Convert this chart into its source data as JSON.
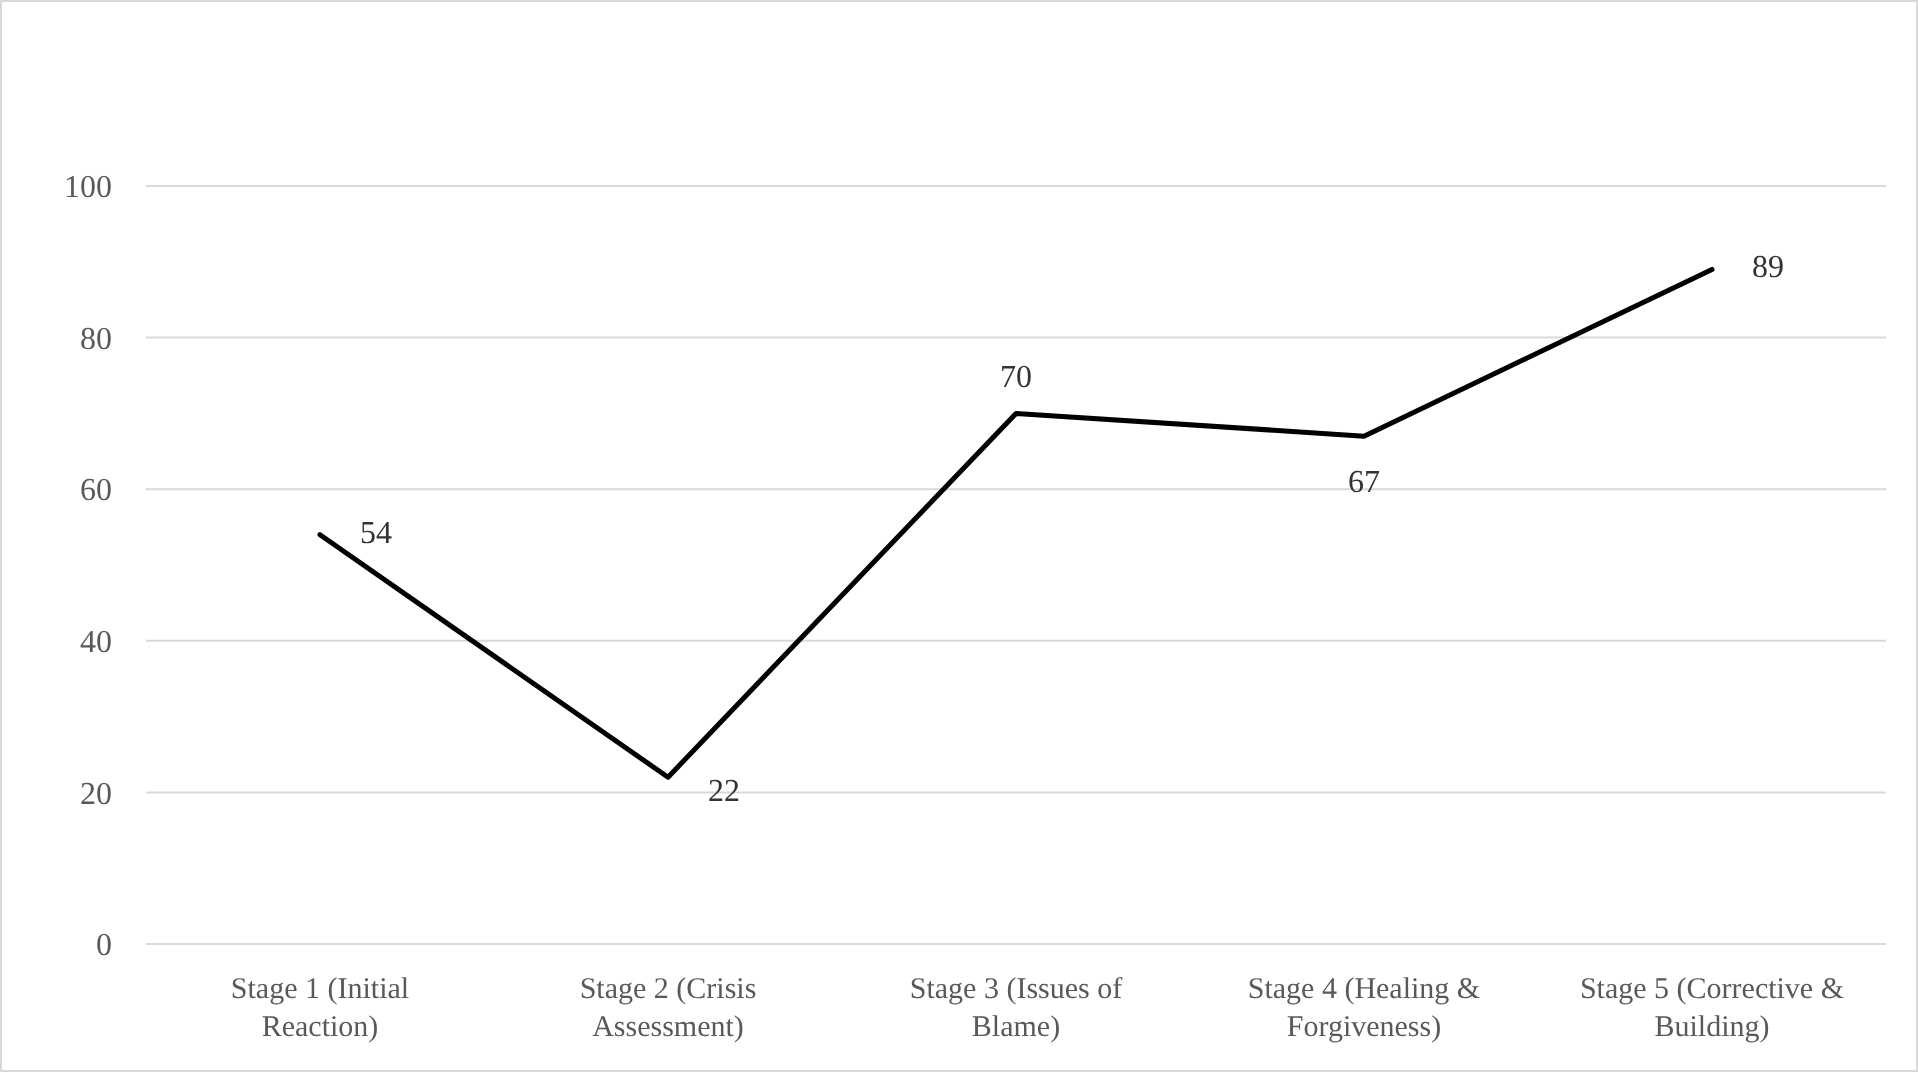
{
  "chart_data": {
    "type": "line",
    "categories": [
      "Stage 1 (Initial Reaction)",
      "Stage 2 (Crisis Assessment)",
      "Stage 3 (Issues of Blame)",
      "Stage 4 (Healing & Forgiveness)",
      "Stage 5 (Corrective & Building)"
    ],
    "series": [
      {
        "color": "#000000",
        "values": [
          54,
          22,
          70,
          67,
          89
        ]
      }
    ],
    "ylim": [
      0,
      100
    ],
    "yticks": [
      0,
      20,
      40,
      60,
      80,
      100
    ],
    "grid": "y",
    "marker": "none",
    "line_style": "solid",
    "data_labels": true
  }
}
